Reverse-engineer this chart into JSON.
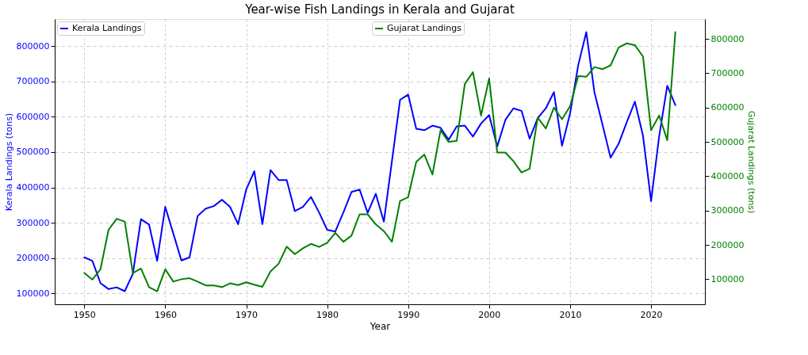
{
  "chart_data": {
    "type": "line",
    "title": "Year-wise Fish Landings in Kerala and Gujarat",
    "xlabel": "Year",
    "ylabel": "Kerala Landings (tons)",
    "y2label": "Gujarat Landings (tons)",
    "x": [
      1950,
      1951,
      1952,
      1953,
      1954,
      1955,
      1956,
      1957,
      1958,
      1959,
      1960,
      1961,
      1962,
      1963,
      1964,
      1965,
      1966,
      1967,
      1968,
      1969,
      1970,
      1971,
      1972,
      1973,
      1974,
      1975,
      1976,
      1977,
      1978,
      1979,
      1980,
      1981,
      1982,
      1983,
      1984,
      1985,
      1986,
      1987,
      1988,
      1989,
      1990,
      1991,
      1992,
      1993,
      1994,
      1995,
      1996,
      1997,
      1998,
      1999,
      2000,
      2001,
      2002,
      2003,
      2004,
      2005,
      2006,
      2007,
      2008,
      2009,
      2010,
      2011,
      2012,
      2013,
      2014,
      2015,
      2016,
      2017,
      2018,
      2019,
      2020,
      2021,
      2022,
      2023
    ],
    "series": [
      {
        "name": "Kerala Landings",
        "color": "#0000ff",
        "values": [
          202000,
          192000,
          129000,
          112000,
          117000,
          106000,
          155000,
          310000,
          295000,
          192000,
          345000,
          269000,
          193000,
          202000,
          319000,
          340000,
          347000,
          365000,
          345000,
          296000,
          394000,
          446000,
          296000,
          449000,
          421000,
          421000,
          333000,
          345000,
          373000,
          329000,
          280000,
          275000,
          329000,
          387000,
          394000,
          328000,
          382000,
          303000,
          475000,
          648000,
          663000,
          566000,
          562000,
          575000,
          569000,
          535000,
          573000,
          575000,
          544000,
          581000,
          605000,
          516000,
          591000,
          624000,
          617000,
          538000,
          596000,
          624000,
          670000,
          518000,
          610000,
          746000,
          840000,
          670000,
          578000,
          484000,
          524000,
          585000,
          643000,
          547000,
          361000,
          545000,
          688000,
          633000
        ]
      },
      {
        "name": "Gujarat Landings",
        "color": "#008000",
        "axis": "y2",
        "values": [
          118000,
          99000,
          129000,
          244000,
          276000,
          268000,
          118000,
          131000,
          77000,
          65000,
          129000,
          93000,
          100000,
          103000,
          93000,
          82000,
          82000,
          77000,
          88000,
          83000,
          91000,
          84000,
          78000,
          123000,
          145000,
          195000,
          173000,
          190000,
          203000,
          194000,
          206000,
          235000,
          209000,
          227000,
          289000,
          289000,
          260000,
          240000,
          209000,
          328000,
          339000,
          442000,
          463000,
          405000,
          534000,
          500000,
          503000,
          669000,
          703000,
          577000,
          685000,
          469000,
          469000,
          444000,
          411000,
          422000,
          571000,
          539000,
          600000,
          566000,
          604000,
          692000,
          690000,
          718000,
          712000,
          723000,
          775000,
          787000,
          782000,
          749000,
          534000,
          577000,
          505000,
          820000
        ]
      }
    ],
    "xlim": [
      1946.35,
      2026.65
    ],
    "xticks": [
      1950,
      1960,
      1970,
      1980,
      1990,
      2000,
      2010,
      2020
    ],
    "ylim": [
      69000,
      877000
    ],
    "yticks": [
      100000,
      200000,
      300000,
      400000,
      500000,
      600000,
      700000,
      800000
    ],
    "y2lim": [
      27000,
      858000
    ],
    "y2ticks": [
      100000,
      200000,
      300000,
      400000,
      500000,
      600000,
      700000,
      800000
    ],
    "grid": true,
    "legend": "top",
    "marker": "none",
    "line_style": "solid"
  }
}
